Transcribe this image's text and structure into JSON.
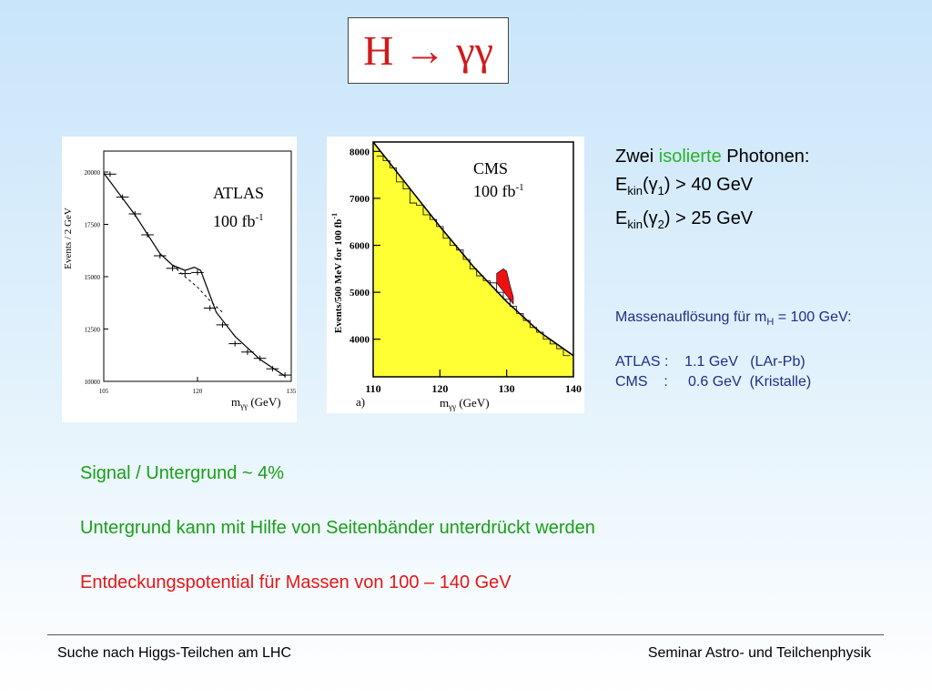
{
  "slide": {
    "title": "H → γγ"
  },
  "cuts": {
    "line1_pre": "Zwei ",
    "line1_hl": "isolierte",
    "line1_post": " Photonen:",
    "e1_pre": "E",
    "e1_sub": "kin",
    "e1_mid": "(γ",
    "e1_idx": "1",
    "e1_post": ") > 40 GeV",
    "e2_pre": "E",
    "e2_sub": "kin",
    "e2_mid": "(γ",
    "e2_idx": "2",
    "e2_post": ") > 25 GeV"
  },
  "resolution": {
    "head_pre": "Massenauflösung für m",
    "head_sub": "H",
    "head_post": " = 100 GeV:",
    "atlas_row": "ATLAS :    1.1 GeV   (LAr-Pb)",
    "cms_row": "CMS    :     0.6 GeV  (Kristalle)"
  },
  "statements": {
    "signal": "Signal / Untergrund  ~ 4%",
    "sideband": "Untergrund kann mit Hilfe von Seitenbänder unterdrückt werden",
    "discovery": "Entdeckungspotential für Massen von 100 – 140 GeV"
  },
  "footer": {
    "left": "Suche nach Higgs-Teilchen am LHC",
    "right": "Seminar Astro- und Teilchenphysik"
  },
  "colors": {
    "title": "#d11a1a",
    "highlight_green": "#19a019",
    "highlight_red": "#e41717",
    "resolution_blue": "#1f2e8a",
    "cms_fill": "#ffff33",
    "cms_signal": "#ee1111"
  },
  "chart_data": [
    {
      "type": "scatter",
      "experiment_label": "ATLAS",
      "lumi": "100 fb",
      "lumi_exp": "-1",
      "ylabel": "Events / 2 GeV",
      "xlabel_pre": "m",
      "xlabel_sub": "γγ",
      "xlabel_post": " (GeV)",
      "xlim": [
        105,
        135
      ],
      "ylim": [
        10000,
        21000
      ],
      "xticks": [
        "105",
        "120",
        "135"
      ],
      "yticks": [
        "10000",
        "12500",
        "15000",
        "17500",
        "20000"
      ],
      "x": [
        106,
        108,
        110,
        112,
        114,
        116,
        118,
        120,
        122,
        124,
        126,
        128,
        130,
        132,
        134
      ],
      "y": [
        19900,
        18800,
        18000,
        17000,
        16000,
        15400,
        15150,
        15200,
        13500,
        12700,
        11800,
        11400,
        11100,
        10600,
        10300
      ],
      "fit_signal_background": [
        [
          105,
          19950
        ],
        [
          110,
          17950
        ],
        [
          114,
          16100
        ],
        [
          116,
          15550
        ],
        [
          118,
          15300
        ],
        [
          119.5,
          15450
        ],
        [
          120.5,
          15300
        ],
        [
          121.5,
          14500
        ],
        [
          123,
          13300
        ],
        [
          126,
          12150
        ],
        [
          130,
          11050
        ],
        [
          134,
          10250
        ]
      ],
      "fit_background_only": [
        [
          116,
          15550
        ],
        [
          118,
          15000
        ],
        [
          120,
          14500
        ],
        [
          122,
          13850
        ],
        [
          124,
          13300
        ]
      ]
    },
    {
      "type": "bar",
      "experiment_label": "CMS",
      "lumi": "100 fb",
      "lumi_exp": "-1",
      "panel_label": "a)",
      "ylabel": "Events/500 MeV for 100 fb",
      "ylabel_exp": "-1",
      "xlabel_pre": "m",
      "xlabel_sub": "γγ",
      "xlabel_post": " (GeV)",
      "xlim": [
        110,
        140
      ],
      "ylim": [
        3200,
        8200
      ],
      "xticks": [
        "110",
        "120",
        "130",
        "140"
      ],
      "yticks": [
        "4000",
        "5000",
        "6000",
        "7000",
        "8000"
      ],
      "background_curve": [
        [
          110,
          8250
        ],
        [
          115,
          7300
        ],
        [
          120,
          6400
        ],
        [
          125,
          5550
        ],
        [
          130,
          4800
        ],
        [
          135,
          4150
        ],
        [
          140,
          3650
        ]
      ],
      "signal_peak": [
        [
          128.5,
          5400
        ],
        [
          129,
          5450
        ],
        [
          129.5,
          5500
        ],
        [
          130,
          5450
        ],
        [
          130.5,
          5150
        ],
        [
          131,
          4900
        ]
      ],
      "data_x": [
        111,
        112,
        113,
        114,
        115,
        116,
        117,
        118,
        119,
        120,
        121,
        122,
        123,
        124,
        125,
        126,
        127,
        128,
        129,
        130,
        131,
        132,
        133,
        134,
        135,
        136,
        137,
        138,
        139
      ],
      "data_y": [
        7900,
        7800,
        7650,
        7350,
        7200,
        6900,
        6850,
        6650,
        6550,
        6400,
        6150,
        6000,
        5900,
        5700,
        5500,
        5350,
        5250,
        5200,
        5000,
        4850,
        4700,
        4550,
        4400,
        4250,
        4150,
        4000,
        3900,
        3800,
        3650
      ]
    }
  ]
}
